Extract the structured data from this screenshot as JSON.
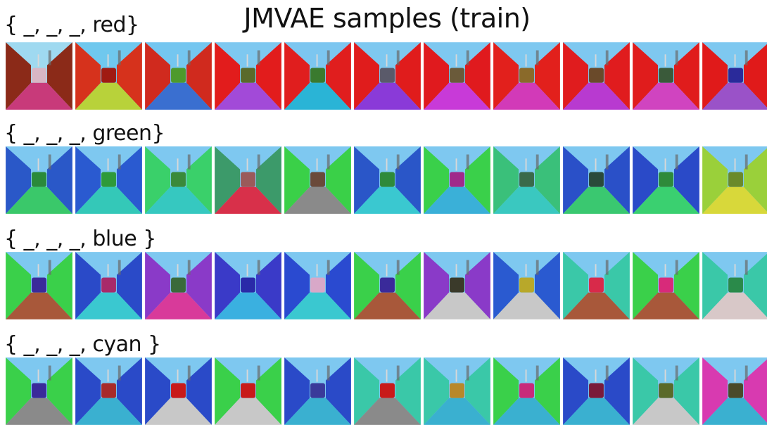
{
  "figure": {
    "title": "JMVAE samples (train)"
  },
  "rows": [
    {
      "label": "{ _, _, _, red}",
      "samples": [
        {
          "wall": "#8b2a18",
          "floor": "#c83a7a",
          "object": "#d8b6c4",
          "sky": "#9fd9f0"
        },
        {
          "wall": "#d6321c",
          "floor": "#b8d23a",
          "object": "#a01a12",
          "sky": "#6fc8ee"
        },
        {
          "wall": "#d02a1e",
          "floor": "#3a6fd0",
          "object": "#4e9a2c",
          "sky": "#74c6f0"
        },
        {
          "wall": "#e21c1c",
          "floor": "#a24ad8",
          "object": "#5a6a2a",
          "sky": "#7ec8f0"
        },
        {
          "wall": "#e01e1e",
          "floor": "#2ab4d6",
          "object": "#3a7a2e",
          "sky": "#7cc6f0"
        },
        {
          "wall": "#e01c1c",
          "floor": "#8a3ad8",
          "object": "#5a5a6a",
          "sky": "#7ec8f0"
        },
        {
          "wall": "#e01a1e",
          "floor": "#c83ad8",
          "object": "#6a5a3a",
          "sky": "#7ec8f0"
        },
        {
          "wall": "#e2201c",
          "floor": "#d23ab8",
          "object": "#8a6a2a",
          "sky": "#7ec8f0"
        },
        {
          "wall": "#e01c1e",
          "floor": "#b83ad0",
          "object": "#6a4a2a",
          "sky": "#7ec8f0"
        },
        {
          "wall": "#e01c1c",
          "floor": "#d044c0",
          "object": "#3a5a3a",
          "sky": "#7ec8f0"
        },
        {
          "wall": "#e01a1a",
          "floor": "#9a52c8",
          "object": "#2a2a9a",
          "sky": "#7ec8f0"
        }
      ]
    },
    {
      "label": "{ _, _, _, green}",
      "samples": [
        {
          "wall": "#2a58c8",
          "floor": "#3ac86a",
          "object": "#2a8a3a",
          "sky": "#7ec8f0"
        },
        {
          "wall": "#2a5ad0",
          "floor": "#34c8b8",
          "object": "#2e9a3a",
          "sky": "#7ec8f0"
        },
        {
          "wall": "#3ad06a",
          "floor": "#36c8c0",
          "object": "#3a8a3a",
          "sky": "#7ec8f0"
        },
        {
          "wall": "#3c9a6a",
          "floor": "#d8304a",
          "object": "#9a5a5a",
          "sky": "#7ec8f0"
        },
        {
          "wall": "#3ad048",
          "floor": "#8a8a8a",
          "object": "#6a4a3a",
          "sky": "#7ec8f0"
        },
        {
          "wall": "#2a56c8",
          "floor": "#3ac8d0",
          "object": "#2e8a3a",
          "sky": "#7ec8f0"
        },
        {
          "wall": "#3ad04a",
          "floor": "#3ab0d8",
          "object": "#a02a8a",
          "sky": "#7ec8f0"
        },
        {
          "wall": "#3ac07a",
          "floor": "#3ac8c0",
          "object": "#3a6a4a",
          "sky": "#7ec8f0"
        },
        {
          "wall": "#2a50c8",
          "floor": "#3ac870",
          "object": "#2a4a3a",
          "sky": "#7ec8f0"
        },
        {
          "wall": "#2a4ac8",
          "floor": "#3ad070",
          "object": "#2e8a3a",
          "sky": "#7ec8f0"
        },
        {
          "wall": "#9ad03a",
          "floor": "#d8d83a",
          "object": "#6a8a2a",
          "sky": "#7ec8f0"
        }
      ]
    },
    {
      "label": "{ _, _, _, blue }",
      "samples": [
        {
          "wall": "#3ad04a",
          "floor": "#a8583a",
          "object": "#3a2a9a",
          "sky": "#7ec8f0"
        },
        {
          "wall": "#2a4ac8",
          "floor": "#3ac8d0",
          "object": "#a82a6a",
          "sky": "#7ec8f0"
        },
        {
          "wall": "#8a3ac8",
          "floor": "#d83a9a",
          "object": "#3a6a3a",
          "sky": "#7ec8f0"
        },
        {
          "wall": "#3a3ac8",
          "floor": "#3ab0e0",
          "object": "#2a2aa8",
          "sky": "#7ec8f0"
        },
        {
          "wall": "#2a4ad0",
          "floor": "#3ac8d0",
          "object": "#d8a8c8",
          "sky": "#7ec8f0"
        },
        {
          "wall": "#3ad04a",
          "floor": "#a8583a",
          "object": "#3a2a9a",
          "sky": "#7ec8f0"
        },
        {
          "wall": "#8a3ac8",
          "floor": "#c8c8c8",
          "object": "#3a3a2a",
          "sky": "#7ec8f0"
        },
        {
          "wall": "#2a5ad0",
          "floor": "#c8c8c8",
          "object": "#b8a82a",
          "sky": "#7ec8f0"
        },
        {
          "wall": "#3ac8a8",
          "floor": "#a8583a",
          "object": "#d82a4a",
          "sky": "#7ec8f0"
        },
        {
          "wall": "#3ad04a",
          "floor": "#a8583a",
          "object": "#d82a7a",
          "sky": "#7ec8f0"
        },
        {
          "wall": "#3ac8a8",
          "floor": "#d8c8c8",
          "object": "#2a8a4a",
          "sky": "#7ec8f0"
        }
      ]
    },
    {
      "label": "{ _, _, _, cyan }",
      "samples": [
        {
          "wall": "#3ad04a",
          "floor": "#8a8a8a",
          "object": "#3a2a9a",
          "sky": "#7ec8f0"
        },
        {
          "wall": "#2a4ac8",
          "floor": "#3ab0d0",
          "object": "#a82a2a",
          "sky": "#7ec8f0"
        },
        {
          "wall": "#2a4ac8",
          "floor": "#c8c8c8",
          "object": "#c81a1a",
          "sky": "#7ec8f0"
        },
        {
          "wall": "#3ad04a",
          "floor": "#c8c8c8",
          "object": "#c81a1a",
          "sky": "#7ec8f0"
        },
        {
          "wall": "#2a4ac8",
          "floor": "#3ab0d0",
          "object": "#3a3a9a",
          "sky": "#7ec8f0"
        },
        {
          "wall": "#3ac8a8",
          "floor": "#8a8a8a",
          "object": "#c81a1a",
          "sky": "#7ec8f0"
        },
        {
          "wall": "#3ac8a8",
          "floor": "#3ab0d0",
          "object": "#b8882a",
          "sky": "#7ec8f0"
        },
        {
          "wall": "#3ad04a",
          "floor": "#3ab0d0",
          "object": "#c82a7a",
          "sky": "#7ec8f0"
        },
        {
          "wall": "#2a4ac8",
          "floor": "#3ab0d0",
          "object": "#7a1a3a",
          "sky": "#7ec8f0"
        },
        {
          "wall": "#3ac8a8",
          "floor": "#c8c8c8",
          "object": "#5a6a2a",
          "sky": "#7ec8f0"
        },
        {
          "wall": "#d83ab0",
          "floor": "#3ab0d0",
          "object": "#4a4a2a",
          "sky": "#7ec8f0"
        }
      ]
    }
  ]
}
